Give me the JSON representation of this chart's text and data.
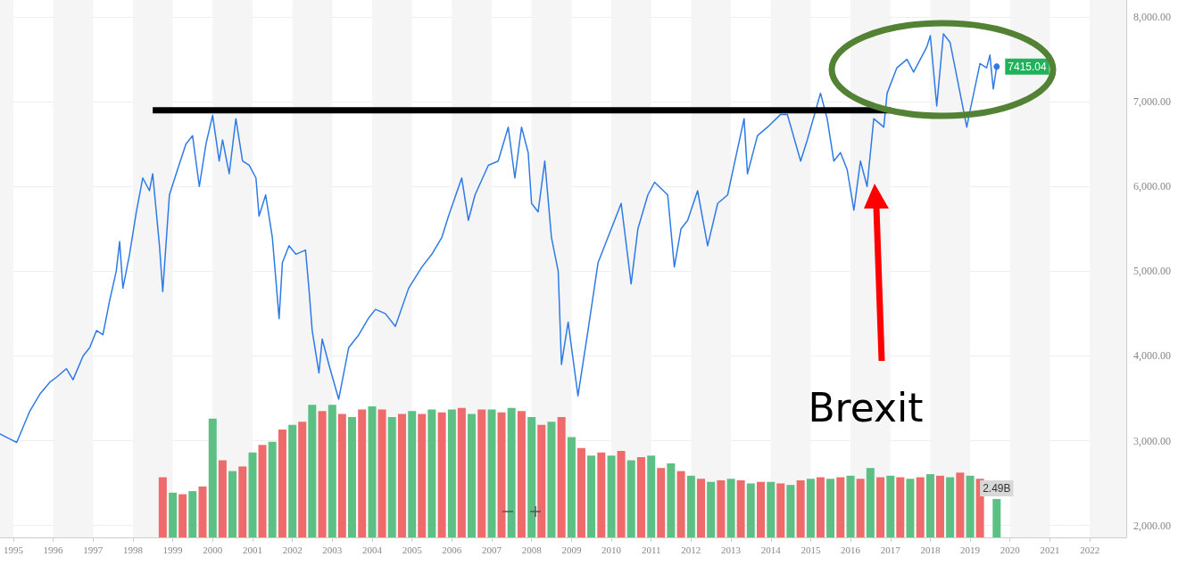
{
  "chart_data": [
    {
      "type": "line",
      "annotations": [
        "Brexit"
      ],
      "xlim": [
        "1994-09",
        "2022-12"
      ],
      "ylim": [
        1860,
        8200
      ],
      "xticks": [
        "1995",
        "1996",
        "1997",
        "1998",
        "1999",
        "2000",
        "2001",
        "2002",
        "2003",
        "2004",
        "2005",
        "2006",
        "2007",
        "2008",
        "2009",
        "2010",
        "2011",
        "2012",
        "2013",
        "2014",
        "2015",
        "2016",
        "2017",
        "2018",
        "2019",
        "2020",
        "2021",
        "2022"
      ],
      "yticks": [
        {
          "value": 2000,
          "label": "2,000.00"
        },
        {
          "value": 3000,
          "label": "3,000.00"
        },
        {
          "value": 4000,
          "label": "4,000.00"
        },
        {
          "value": 5000,
          "label": "5,000.00"
        },
        {
          "value": 6000,
          "label": "6,000.00"
        },
        {
          "value": 7000,
          "label": "7,000.00"
        },
        {
          "value": 8000,
          "label": "8,000.00"
        }
      ],
      "grid": "y",
      "marker": "none",
      "line_style": "solid",
      "bands": [
        {
          "axis": "x",
          "from": "1994-09",
          "to": "1995",
          "color": "#f5f5f5"
        },
        {
          "axis": "x",
          "from": "1996",
          "to": "1997",
          "color": "#f5f5f5"
        },
        {
          "axis": "x",
          "from": "1998",
          "to": "1999",
          "color": "#f5f5f5"
        },
        {
          "axis": "x",
          "from": "2000",
          "to": "2001",
          "color": "#f5f5f5"
        },
        {
          "axis": "x",
          "from": "2002",
          "to": "2003",
          "color": "#f5f5f5"
        },
        {
          "axis": "x",
          "from": "2004",
          "to": "2005",
          "color": "#f5f5f5"
        },
        {
          "axis": "x",
          "from": "2006",
          "to": "2007",
          "color": "#f5f5f5"
        },
        {
          "axis": "x",
          "from": "2008",
          "to": "2009",
          "color": "#f5f5f5"
        },
        {
          "axis": "x",
          "from": "2010",
          "to": "2011",
          "color": "#f5f5f5"
        },
        {
          "axis": "x",
          "from": "2012",
          "to": "2013",
          "color": "#f5f5f5"
        },
        {
          "axis": "x",
          "from": "2014",
          "to": "2015",
          "color": "#f5f5f5"
        },
        {
          "axis": "x",
          "from": "2016",
          "to": "2017",
          "color": "#f5f5f5"
        },
        {
          "axis": "x",
          "from": "2018",
          "to": "2019",
          "color": "#f5f5f5"
        },
        {
          "axis": "x",
          "from": "2020",
          "to": "2021",
          "color": "#f5f5f5"
        },
        {
          "axis": "x",
          "from": "2022",
          "to": "2022-12",
          "color": "#f5f5f5"
        }
      ],
      "series": [
        {
          "color": "#2f7be6",
          "x": [
            "1994-09",
            "1994-12",
            "1995-02",
            "1995-06",
            "1995-09",
            "1995-12",
            "1996-02",
            "1996-05",
            "1996-07",
            "1996-10",
            "1996-12",
            "1997-02",
            "1997-04",
            "1997-06",
            "1997-08",
            "1997-09",
            "1997-10",
            "1997-12",
            "1998-02",
            "1998-04",
            "1998-06",
            "1998-07",
            "1998-09",
            "1998-10",
            "1998-12",
            "1999-02",
            "1999-05",
            "1999-07",
            "1999-09",
            "1999-11",
            "2000-01",
            "2000-03",
            "2000-04",
            "2000-06",
            "2000-08",
            "2000-10",
            "2000-12",
            "2001-02",
            "2001-03",
            "2001-05",
            "2001-07",
            "2001-09",
            "2001-10",
            "2001-12",
            "2002-02",
            "2002-05",
            "2002-06",
            "2002-07",
            "2002-09",
            "2002-10",
            "2002-12",
            "2003-03",
            "2003-06",
            "2003-09",
            "2003-12",
            "2004-02",
            "2004-05",
            "2004-08",
            "2004-12",
            "2005-04",
            "2005-07",
            "2005-10",
            "2005-12",
            "2006-04",
            "2006-06",
            "2006-08",
            "2006-12",
            "2007-03",
            "2007-06",
            "2007-08",
            "2007-10",
            "2007-12",
            "2008-01",
            "2008-03",
            "2008-05",
            "2008-07",
            "2008-09",
            "2008-10",
            "2008-12",
            "2009-03",
            "2009-06",
            "2009-09",
            "2009-12",
            "2010-04",
            "2010-07",
            "2010-09",
            "2010-12",
            "2011-02",
            "2011-06",
            "2011-08",
            "2011-10",
            "2011-12",
            "2012-03",
            "2012-06",
            "2012-09",
            "2012-12",
            "2013-05",
            "2013-06",
            "2013-09",
            "2013-12",
            "2014-04",
            "2014-06",
            "2014-10",
            "2014-12",
            "2015-04",
            "2015-06",
            "2015-08",
            "2015-10",
            "2015-12",
            "2016-02",
            "2016-04",
            "2016-06",
            "2016-08",
            "2016-11",
            "2016-12",
            "2017-03",
            "2017-06",
            "2017-08",
            "2017-10",
            "2017-12",
            "2018-01",
            "2018-03",
            "2018-05",
            "2018-07",
            "2018-10",
            "2018-12",
            "2019-01",
            "2019-04",
            "2019-06",
            "2019-07",
            "2019-08",
            "2019-09"
          ],
          "values": [
            3080,
            3020,
            2980,
            3350,
            3550,
            3690,
            3750,
            3850,
            3720,
            4000,
            4100,
            4300,
            4250,
            4650,
            5000,
            5350,
            4800,
            5200,
            5700,
            6100,
            5950,
            6150,
            5300,
            4760,
            5900,
            6150,
            6500,
            6600,
            6000,
            6500,
            6840,
            6300,
            6550,
            6150,
            6800,
            6300,
            6250,
            6100,
            5650,
            5900,
            5400,
            4440,
            5100,
            5300,
            5200,
            5250,
            4800,
            4300,
            3800,
            4200,
            3900,
            3490,
            4100,
            4250,
            4450,
            4550,
            4500,
            4350,
            4800,
            5050,
            5200,
            5400,
            5650,
            6100,
            5600,
            5900,
            6250,
            6300,
            6700,
            6100,
            6700,
            6400,
            5800,
            5700,
            6300,
            5400,
            5000,
            3900,
            4400,
            3530,
            4300,
            5100,
            5400,
            5800,
            4850,
            5500,
            5900,
            6050,
            5900,
            5050,
            5500,
            5600,
            5950,
            5300,
            5800,
            5900,
            6800,
            6150,
            6600,
            6700,
            6850,
            6850,
            6300,
            6550,
            7100,
            6800,
            6300,
            6400,
            6200,
            5720,
            6300,
            6000,
            6800,
            6700,
            7100,
            7400,
            7500,
            7350,
            7500,
            7650,
            7780,
            6950,
            7800,
            7700,
            7100,
            6700,
            6900,
            7450,
            7400,
            7550,
            7150,
            7415.04
          ],
          "value_labels": [
            null,
            null,
            null,
            null,
            null,
            null,
            null,
            null,
            null,
            null,
            null,
            null,
            null,
            null,
            null,
            null,
            null,
            null,
            null,
            null,
            null,
            null,
            null,
            null,
            null,
            null,
            null,
            null,
            null,
            null,
            null,
            null,
            null,
            null,
            null,
            null,
            null,
            null,
            null,
            null,
            null,
            null,
            null,
            null,
            null,
            null,
            null,
            null,
            null,
            null,
            null,
            null,
            null,
            null,
            null,
            null,
            null,
            null,
            null,
            null,
            null,
            null,
            null,
            null,
            null,
            null,
            null,
            null,
            null,
            null,
            null,
            null,
            null,
            null,
            null,
            null,
            null,
            null,
            null,
            null,
            null,
            null,
            null,
            null,
            null,
            null,
            null,
            null,
            null,
            null,
            null,
            null,
            null,
            null,
            null,
            null,
            null,
            null,
            null,
            null,
            null,
            null,
            null,
            null,
            null,
            null,
            null,
            null,
            null,
            null,
            null,
            null,
            null,
            null,
            null,
            null,
            null,
            null,
            null,
            null,
            null,
            null,
            null,
            null,
            null,
            null,
            null,
            null,
            null,
            null,
            null,
            "7415.04"
          ]
        },
        {
          "color": "#000000",
          "x": [
            "1998-07",
            "2017-01"
          ],
          "values": [
            6900,
            6900
          ]
        }
      ]
    },
    {
      "type": "bar",
      "xlim": [
        "1994-09",
        "2022-12"
      ],
      "x": [
        "1998-10",
        "1999-01",
        "1999-04",
        "1999-07",
        "1999-10",
        "2000-01",
        "2000-04",
        "2000-07",
        "2000-10",
        "2001-01",
        "2001-04",
        "2001-07",
        "2001-10",
        "2002-01",
        "2002-04",
        "2002-07",
        "2002-10",
        "2003-01",
        "2003-04",
        "2003-07",
        "2003-10",
        "2004-01",
        "2004-04",
        "2004-07",
        "2004-10",
        "2005-01",
        "2005-04",
        "2005-07",
        "2005-10",
        "2006-01",
        "2006-04",
        "2006-07",
        "2006-10",
        "2007-01",
        "2007-04",
        "2007-07",
        "2007-10",
        "2008-01",
        "2008-04",
        "2008-07",
        "2008-10",
        "2009-01",
        "2009-04",
        "2009-07",
        "2009-10",
        "2010-01",
        "2010-04",
        "2010-07",
        "2010-10",
        "2011-01",
        "2011-04",
        "2011-07",
        "2011-10",
        "2012-01",
        "2012-04",
        "2012-07",
        "2012-10",
        "2013-01",
        "2013-04",
        "2013-07",
        "2013-10",
        "2014-01",
        "2014-04",
        "2014-07",
        "2014-10",
        "2015-01",
        "2015-04",
        "2015-07",
        "2015-10",
        "2016-01",
        "2016-04",
        "2016-07",
        "2016-10",
        "2017-01",
        "2017-04",
        "2017-07",
        "2017-10",
        "2018-01",
        "2018-04",
        "2018-07",
        "2018-10",
        "2019-01",
        "2019-04",
        "2019-09"
      ],
      "values": [
        3.9,
        2.9,
        2.8,
        3.0,
        3.3,
        7.7,
        5.0,
        4.3,
        4.6,
        5.5,
        6.0,
        6.2,
        7.0,
        7.3,
        7.5,
        8.6,
        8.2,
        8.6,
        8.0,
        7.8,
        8.3,
        8.5,
        8.3,
        7.8,
        8.0,
        8.2,
        8.0,
        8.3,
        8.1,
        8.3,
        8.4,
        8.0,
        8.3,
        8.3,
        8.1,
        8.4,
        8.2,
        7.8,
        7.3,
        7.5,
        7.8,
        6.5,
        5.8,
        5.3,
        5.5,
        5.3,
        5.6,
        5.0,
        5.2,
        5.3,
        4.5,
        4.8,
        4.3,
        4.0,
        3.8,
        3.6,
        3.7,
        3.8,
        3.7,
        3.5,
        3.6,
        3.6,
        3.5,
        3.4,
        3.7,
        3.8,
        3.9,
        3.8,
        3.9,
        4.0,
        3.8,
        4.5,
        3.9,
        4.0,
        3.9,
        3.8,
        3.9,
        4.1,
        4.0,
        3.9,
        4.2,
        4.0,
        3.8,
        2.49
      ],
      "colors": [
        "#ef6b6b",
        "#5cc084",
        "#ef6b6b",
        "#5cc084",
        "#ef6b6b",
        "#5cc084",
        "#ef6b6b",
        "#5cc084",
        "#ef6b6b",
        "#5cc084",
        "#ef6b6b",
        "#5cc084",
        "#ef6b6b",
        "#5cc084",
        "#ef6b6b",
        "#5cc084",
        "#ef6b6b",
        "#5cc084",
        "#ef6b6b",
        "#5cc084",
        "#ef6b6b",
        "#5cc084",
        "#ef6b6b",
        "#5cc084",
        "#ef6b6b",
        "#5cc084",
        "#ef6b6b",
        "#5cc084",
        "#ef6b6b",
        "#5cc084",
        "#ef6b6b",
        "#5cc084",
        "#ef6b6b",
        "#5cc084",
        "#ef6b6b",
        "#5cc084",
        "#ef6b6b",
        "#5cc084",
        "#ef6b6b",
        "#5cc084",
        "#ef6b6b",
        "#5cc084",
        "#ef6b6b",
        "#5cc084",
        "#ef6b6b",
        "#5cc084",
        "#ef6b6b",
        "#5cc084",
        "#ef6b6b",
        "#5cc084",
        "#ef6b6b",
        "#5cc084",
        "#ef6b6b",
        "#5cc084",
        "#ef6b6b",
        "#5cc084",
        "#ef6b6b",
        "#5cc084",
        "#ef6b6b",
        "#5cc084",
        "#ef6b6b",
        "#5cc084",
        "#ef6b6b",
        "#5cc084",
        "#ef6b6b",
        "#5cc084",
        "#ef6b6b",
        "#5cc084",
        "#ef6b6b",
        "#5cc084",
        "#ef6b6b",
        "#5cc084",
        "#ef6b6b",
        "#5cc084",
        "#ef6b6b",
        "#5cc084",
        "#ef6b6b",
        "#5cc084",
        "#ef6b6b",
        "#5cc084",
        "#ef6b6b",
        "#5cc084",
        "#ef6b6b",
        "#5cc084"
      ],
      "value_labels": [
        null,
        null,
        null,
        null,
        null,
        null,
        null,
        null,
        null,
        null,
        null,
        null,
        null,
        null,
        null,
        null,
        null,
        null,
        null,
        null,
        null,
        null,
        null,
        null,
        null,
        null,
        null,
        null,
        null,
        null,
        null,
        null,
        null,
        null,
        null,
        null,
        null,
        null,
        null,
        null,
        null,
        null,
        null,
        null,
        null,
        null,
        null,
        null,
        null,
        null,
        null,
        null,
        null,
        null,
        null,
        null,
        null,
        null,
        null,
        null,
        null,
        null,
        null,
        null,
        null,
        null,
        null,
        null,
        null,
        null,
        null,
        null,
        null,
        null,
        null,
        null,
        null,
        null,
        null,
        null,
        null,
        null,
        null,
        "2.49B"
      ]
    }
  ]
}
